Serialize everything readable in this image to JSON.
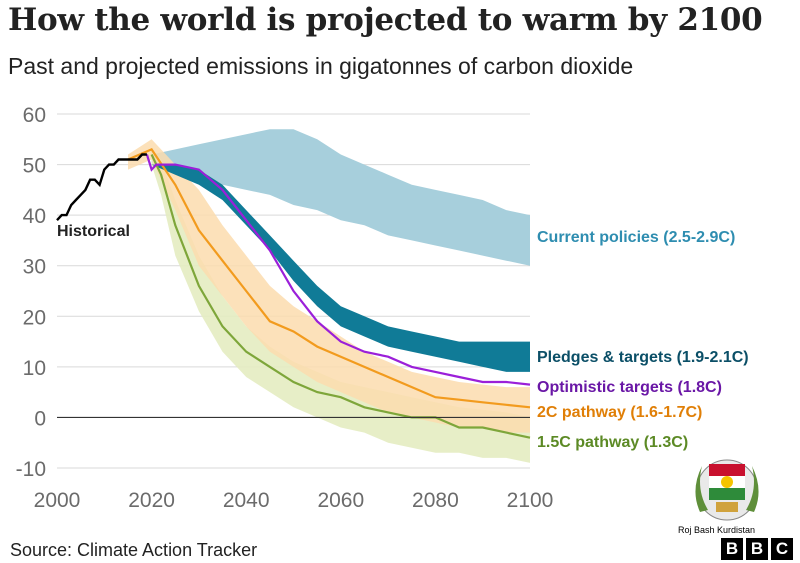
{
  "header": {
    "title": "How the world is projected to warm by 2100",
    "subtitle": "Past and projected emissions in gigatonnes of carbon dioxide"
  },
  "footer": {
    "source": "Source: Climate Action Tracker",
    "logo_letters": [
      "B",
      "B",
      "C"
    ]
  },
  "watermark": {
    "text": "Roj Bash Kurdistan"
  },
  "colors": {
    "historical": "#000000",
    "current_band": "#a7cfdc",
    "current_label": "#2e8db0",
    "pledges_band": "#107b97",
    "pledges_label": "#0b4f67",
    "optimistic": "#9b1fd9",
    "optimistic_label": "#6a17a6",
    "pathway_2c": "#f29b1e",
    "pathway_2c_band": "#fcdcae",
    "pathway_2c_label": "#e07f07",
    "pathway_15c": "#7ea63a",
    "pathway_15c_band": "#e4ecc1",
    "pathway_15c_label": "#5c8a25",
    "axis_text": "#6b6b6b",
    "grid": "#d9d9d9",
    "zero_line": "#333333"
  },
  "chart_data": {
    "type": "line",
    "title": "How the world is projected to warm by 2100",
    "subtitle": "Past and projected emissions in gigatonnes of carbon dioxide",
    "xlabel": "",
    "ylabel": "",
    "xlim": [
      2000,
      2100
    ],
    "ylim": [
      -10,
      60
    ],
    "x_ticks": [
      2000,
      2020,
      2040,
      2060,
      2080,
      2100
    ],
    "y_ticks": [
      -10,
      0,
      10,
      20,
      30,
      40,
      50,
      60
    ],
    "grid": true,
    "series": [
      {
        "name": "Historical",
        "label": "Historical",
        "kind": "line",
        "x": [
          2000,
          2001,
          2002,
          2003,
          2004,
          2005,
          2006,
          2007,
          2008,
          2009,
          2010,
          2011,
          2012,
          2013,
          2014,
          2015,
          2016,
          2017,
          2018,
          2019
        ],
        "y": [
          39,
          40,
          40,
          42,
          43,
          44,
          45,
          47,
          47,
          46,
          49,
          50,
          50,
          51,
          51,
          51,
          51,
          51,
          52,
          52
        ]
      },
      {
        "name": "Current policies",
        "label": "Current policies (2.5-2.9C)",
        "kind": "band",
        "x": [
          2020,
          2025,
          2030,
          2035,
          2040,
          2045,
          2050,
          2055,
          2060,
          2065,
          2070,
          2075,
          2080,
          2085,
          2090,
          2095,
          2100
        ],
        "low": [
          50,
          48,
          47,
          46,
          45,
          44,
          42,
          41,
          39,
          38,
          36,
          35,
          34,
          33,
          32,
          31,
          30
        ],
        "high": [
          52,
          53,
          54,
          55,
          56,
          57,
          57,
          55,
          52,
          50,
          48,
          46,
          45,
          44,
          43,
          41,
          40
        ]
      },
      {
        "name": "Pledges & targets",
        "label": "Pledges & targets (1.9-2.1C)",
        "kind": "band",
        "x": [
          2020,
          2025,
          2030,
          2035,
          2040,
          2045,
          2050,
          2055,
          2060,
          2065,
          2070,
          2075,
          2080,
          2085,
          2090,
          2095,
          2100
        ],
        "low": [
          50,
          48,
          46,
          43,
          38,
          33,
          27,
          22,
          18,
          16,
          14,
          13,
          12,
          11,
          10,
          9,
          9
        ],
        "high": [
          50,
          50,
          49,
          46,
          41,
          36,
          31,
          26,
          22,
          20,
          18,
          17,
          16,
          15,
          15,
          15,
          15
        ]
      },
      {
        "name": "Optimistic targets",
        "label": "Optimistic targets (1.8C)",
        "kind": "line",
        "x": [
          2019,
          2020,
          2021,
          2025,
          2030,
          2035,
          2040,
          2045,
          2050,
          2055,
          2060,
          2065,
          2070,
          2075,
          2080,
          2085,
          2090,
          2095,
          2100
        ],
        "y": [
          52,
          49,
          50,
          50,
          49,
          45,
          39,
          33,
          25,
          19,
          15,
          13,
          12,
          10,
          9,
          8,
          7,
          7,
          6.5
        ]
      },
      {
        "name": "2C pathway",
        "label": "2C pathway (1.6-1.7C)",
        "kind": "line_band",
        "x": [
          2015,
          2020,
          2025,
          2030,
          2035,
          2040,
          2045,
          2050,
          2055,
          2060,
          2065,
          2070,
          2075,
          2080,
          2085,
          2090,
          2095,
          2100
        ],
        "y": [
          51,
          53,
          46,
          37,
          31,
          25,
          19,
          17,
          14,
          12,
          10,
          8,
          6,
          4,
          3.5,
          3,
          2.5,
          2
        ],
        "low": [
          49,
          51,
          41,
          30,
          24,
          18,
          13,
          10,
          7,
          5,
          3,
          1,
          0,
          -1,
          -2,
          -2,
          -3,
          -3
        ],
        "high": [
          52,
          55,
          50,
          45,
          38,
          32,
          26,
          22,
          19,
          16,
          13,
          11,
          9,
          8,
          7,
          6.5,
          6,
          6
        ]
      },
      {
        "name": "1.5C pathway",
        "label": "1.5C pathway (1.3C)",
        "kind": "line_band",
        "x": [
          2020,
          2022,
          2025,
          2030,
          2035,
          2040,
          2045,
          2050,
          2055,
          2060,
          2065,
          2070,
          2075,
          2080,
          2085,
          2090,
          2095,
          2100
        ],
        "y": [
          52,
          48,
          38,
          26,
          18,
          13,
          10,
          7,
          5,
          4,
          2,
          1,
          0,
          0,
          -2,
          -2,
          -3,
          -4
        ],
        "low": [
          50,
          44,
          32,
          21,
          13,
          8,
          5,
          2,
          0,
          -2,
          -3,
          -5,
          -6,
          -7,
          -7,
          -8,
          -8,
          -9
        ],
        "high": [
          53,
          51,
          43,
          32,
          24,
          18,
          14,
          11,
          9,
          7,
          6,
          5,
          4,
          3,
          2,
          1.5,
          1,
          0
        ]
      }
    ]
  }
}
